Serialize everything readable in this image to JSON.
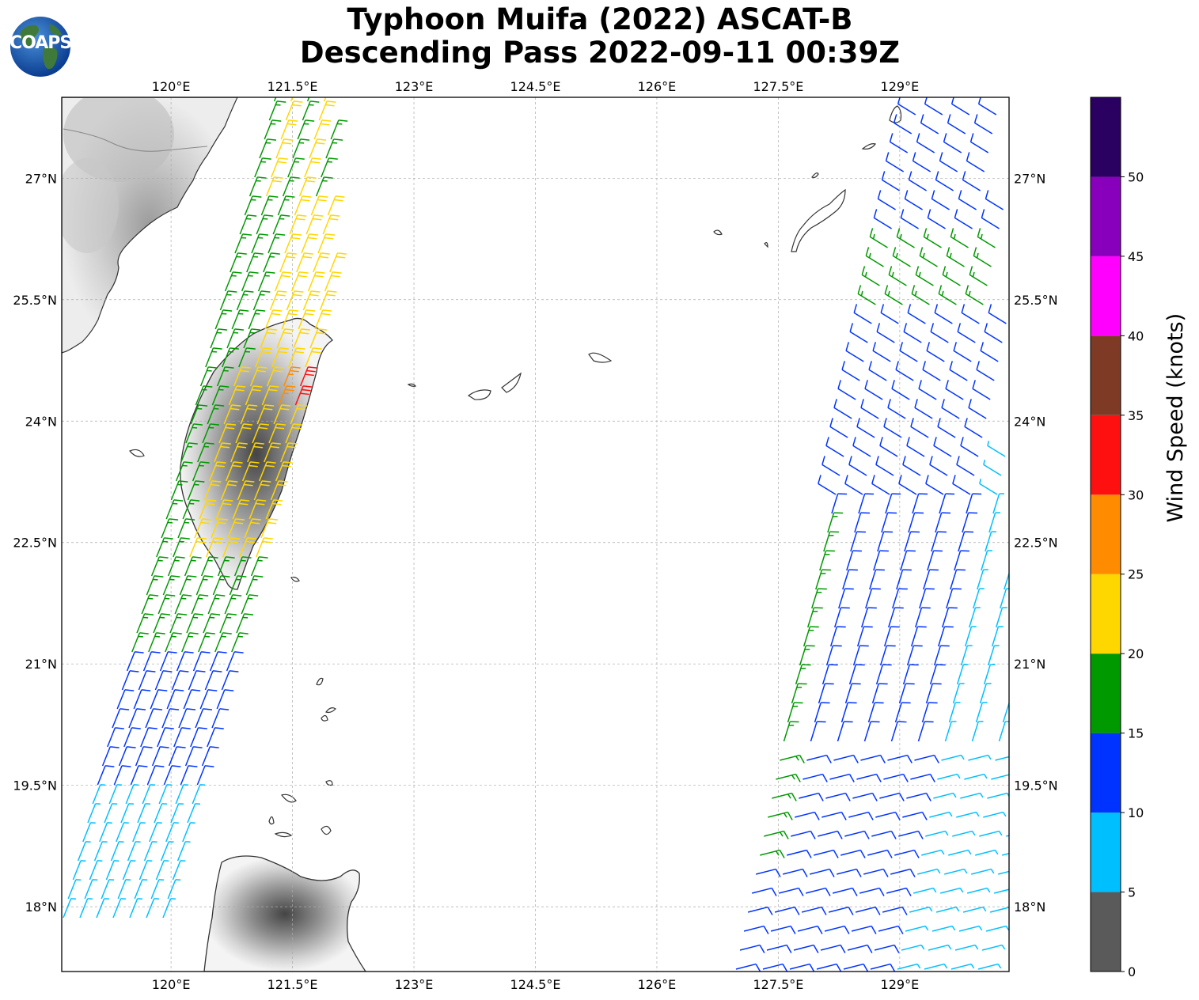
{
  "title": {
    "line1": "Typhoon Muifa (2022) ASCAT-B",
    "line2": "Descending Pass 2022-09-11 00:39Z"
  },
  "logo": {
    "text": "COAPS",
    "icon": "globe-logo-icon"
  },
  "map": {
    "lon_range": [
      118.65,
      130.35
    ],
    "lat_range": [
      17.2,
      28.0
    ],
    "lon_ticks": [
      "120°E",
      "121.5°E",
      "123°E",
      "124.5°E",
      "126°E",
      "127.5°E",
      "129°E"
    ],
    "lon_tick_values": [
      120,
      121.5,
      123,
      124.5,
      126,
      127.5,
      129
    ],
    "lat_ticks": [
      "27°N",
      "25.5°N",
      "24°N",
      "22.5°N",
      "21°N",
      "19.5°N",
      "18°N"
    ],
    "lat_tick_values": [
      27,
      25.5,
      24,
      22.5,
      21,
      19.5,
      18
    ],
    "gridlines": true,
    "terrain_shading": "grayscale"
  },
  "colorbar": {
    "label": "Wind Speed (knots)",
    "tick_labels": [
      "0",
      "5",
      "10",
      "15",
      "20",
      "25",
      "30",
      "35",
      "40",
      "45",
      "50"
    ],
    "bins": [
      {
        "min": 0,
        "max": 5,
        "color": "#5a5a5a"
      },
      {
        "min": 5,
        "max": 10,
        "color": "#00bfff"
      },
      {
        "min": 10,
        "max": 15,
        "color": "#0033ff"
      },
      {
        "min": 15,
        "max": 20,
        "color": "#009900"
      },
      {
        "min": 20,
        "max": 25,
        "color": "#ffd700"
      },
      {
        "min": 25,
        "max": 30,
        "color": "#ff8c00"
      },
      {
        "min": 30,
        "max": 35,
        "color": "#ff1010"
      },
      {
        "min": 35,
        "max": 40,
        "color": "#7f3a25"
      },
      {
        "min": 40,
        "max": 45,
        "color": "#ff00ff"
      },
      {
        "min": 45,
        "max": 50,
        "color": "#8800bb"
      },
      {
        "min": 50,
        "max": 55,
        "color": "#2a0060"
      }
    ]
  },
  "swaths": {
    "west": {
      "description_color_order": [
        "blue",
        "green",
        "yellow",
        "orange",
        "red"
      ]
    },
    "east": {
      "description_color_order": [
        "cyan",
        "blue",
        "green"
      ]
    }
  }
}
